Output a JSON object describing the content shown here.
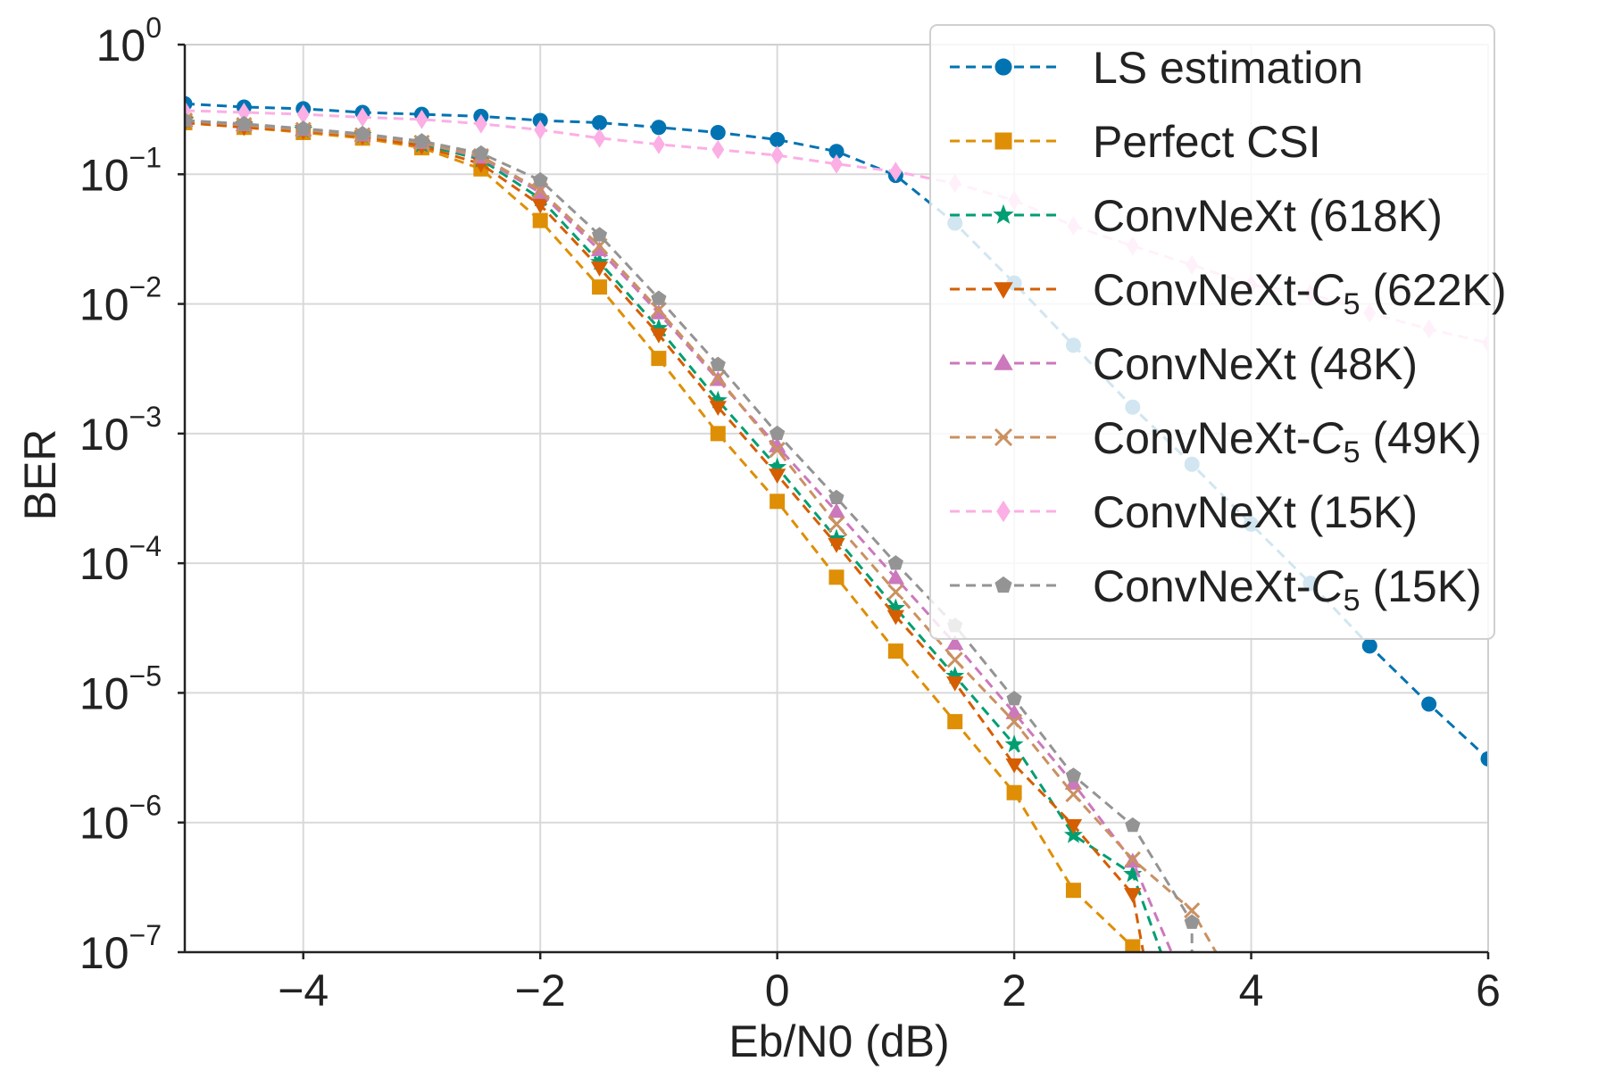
{
  "chart_data": {
    "type": "line",
    "xlabel": "Eb/N0 (dB)",
    "ylabel": "BER",
    "xlim": [
      -5,
      6
    ],
    "ylim": [
      1e-07,
      1
    ],
    "yscale": "log",
    "grid": true,
    "legend_position": "top-right",
    "x_ticks": [
      -4,
      -2,
      0,
      2,
      4,
      6
    ],
    "x_tick_labels": [
      "−4",
      "−2",
      "0",
      "2",
      "4",
      "6"
    ],
    "y_tick_labels": [
      {
        "base": "10",
        "exp": "0"
      },
      {
        "base": "10",
        "exp": "−1"
      },
      {
        "base": "10",
        "exp": "−2"
      },
      {
        "base": "10",
        "exp": "−3"
      },
      {
        "base": "10",
        "exp": "−4"
      },
      {
        "base": "10",
        "exp": "−5"
      },
      {
        "base": "10",
        "exp": "−6"
      },
      {
        "base": "10",
        "exp": "−7"
      }
    ],
    "series": [
      {
        "name": "LS estimation",
        "color": "#0173b2",
        "marker": "circle",
        "x": [
          -5,
          -4.5,
          -4,
          -3.5,
          -3,
          -2.5,
          -2,
          -1.5,
          -1,
          -0.5,
          0,
          0.5,
          1,
          1.5,
          2,
          2.5,
          3,
          3.5,
          4,
          4.5,
          5,
          5.5,
          6
        ],
        "y": [
          0.35,
          0.33,
          0.32,
          0.3,
          0.29,
          0.28,
          0.26,
          0.25,
          0.23,
          0.21,
          0.185,
          0.15,
          0.098,
          0.042,
          0.0145,
          0.0048,
          0.0016,
          0.00058,
          0.0002,
          7e-05,
          2.3e-05,
          8.2e-06,
          3.1e-06
        ]
      },
      {
        "name": "Perfect CSI",
        "color": "#de8f05",
        "marker": "square",
        "x": [
          -5,
          -4.5,
          -4,
          -3.5,
          -3,
          -2.5,
          -2,
          -1.5,
          -1,
          -0.5,
          0,
          0.5,
          1,
          1.5,
          2,
          2.5,
          3,
          3.2
        ],
        "y": [
          0.25,
          0.23,
          0.21,
          0.19,
          0.16,
          0.11,
          0.044,
          0.0135,
          0.0038,
          0.001,
          0.0003,
          7.8e-05,
          2.1e-05,
          6e-06,
          1.7e-06,
          3e-07,
          1.1e-07,
          7e-08
        ]
      },
      {
        "name": "ConvNeXt (618K)",
        "color": "#029e73",
        "marker": "star",
        "x": [
          -5,
          -4.5,
          -4,
          -3.5,
          -3,
          -2.5,
          -2,
          -1.5,
          -1,
          -0.5,
          0,
          0.5,
          1,
          1.5,
          2,
          2.5,
          3,
          3.3
        ],
        "y": [
          0.26,
          0.24,
          0.22,
          0.2,
          0.17,
          0.13,
          0.065,
          0.021,
          0.0065,
          0.0018,
          0.00055,
          0.000155,
          4.5e-05,
          1.35e-05,
          4e-06,
          8e-07,
          4e-07,
          7e-08
        ]
      },
      {
        "name": "ConvNeXt-C5 (622K)",
        "label_main": "ConvNeXt-",
        "label_italic": "C",
        "label_sub": "5",
        "label_tail": " (622K)",
        "color": "#d55e00",
        "marker": "triangle-down",
        "x": [
          -5,
          -4.5,
          -4,
          -3.5,
          -3,
          -2.5,
          -2,
          -1.5,
          -1,
          -0.5,
          0,
          0.5,
          1,
          1.5,
          2,
          2.5,
          3,
          3.12
        ],
        "y": [
          0.25,
          0.23,
          0.215,
          0.195,
          0.165,
          0.12,
          0.058,
          0.019,
          0.0058,
          0.0016,
          0.00048,
          0.00014,
          3.9e-05,
          1.2e-05,
          2.8e-06,
          9.5e-07,
          2.8e-07,
          7e-08
        ]
      },
      {
        "name": "ConvNeXt (48K)",
        "color": "#cc78bc",
        "marker": "triangle-up",
        "x": [
          -5,
          -4.5,
          -4,
          -3.5,
          -3,
          -2.5,
          -2,
          -1.5,
          -1,
          -0.5,
          0,
          0.5,
          1,
          1.5,
          2,
          2.5,
          3,
          3.4
        ],
        "y": [
          0.26,
          0.24,
          0.22,
          0.2,
          0.175,
          0.135,
          0.072,
          0.026,
          0.0085,
          0.0026,
          0.0008,
          0.00025,
          7.7e-05,
          2.4e-05,
          7e-06,
          2e-06,
          5e-07,
          7e-08
        ]
      },
      {
        "name": "ConvNeXt-C5 (49K)",
        "label_main": "ConvNeXt-",
        "label_italic": "C",
        "label_sub": "5",
        "label_tail": " (49K)",
        "color": "#ca9161",
        "marker": "x",
        "x": [
          -5,
          -4.5,
          -4,
          -3.5,
          -3,
          -2.5,
          -2,
          -1.5,
          -1,
          -0.5,
          0,
          0.5,
          1,
          1.5,
          2,
          2.5,
          3,
          3.5,
          3.8
        ],
        "y": [
          0.26,
          0.24,
          0.22,
          0.2,
          0.175,
          0.138,
          0.075,
          0.028,
          0.009,
          0.0027,
          0.00075,
          0.0002,
          6e-05,
          1.8e-05,
          6e-06,
          1.65e-06,
          5.2e-07,
          2.1e-07,
          7e-08
        ]
      },
      {
        "name": "ConvNeXt (15K)",
        "color": "#fbafe4",
        "marker": "diamond",
        "x": [
          -5,
          -4.5,
          -4,
          -3.5,
          -3,
          -2.5,
          -2,
          -1.5,
          -1,
          -0.5,
          0,
          0.5,
          1,
          1.5,
          2,
          2.5,
          3,
          3.5,
          4,
          4.5,
          5,
          5.5,
          6
        ],
        "y": [
          0.31,
          0.3,
          0.29,
          0.275,
          0.265,
          0.245,
          0.22,
          0.19,
          0.17,
          0.155,
          0.14,
          0.12,
          0.105,
          0.085,
          0.063,
          0.04,
          0.028,
          0.02,
          0.014,
          0.012,
          0.0085,
          0.0064,
          0.005
        ]
      },
      {
        "name": "ConvNeXt-C5 (15K)",
        "label_main": "ConvNeXt-",
        "label_italic": "C",
        "label_sub": "5",
        "label_tail": " (15K)",
        "color": "#949494",
        "marker": "pentagon",
        "x": [
          -5,
          -4.5,
          -4,
          -3.5,
          -3,
          -2.5,
          -2,
          -1.5,
          -1,
          -0.5,
          0,
          0.5,
          1,
          1.5,
          2,
          2.5,
          3,
          3.5,
          3.5
        ],
        "y": [
          0.26,
          0.245,
          0.225,
          0.205,
          0.18,
          0.145,
          0.09,
          0.034,
          0.011,
          0.0034,
          0.001,
          0.00032,
          0.0001,
          3.3e-05,
          9e-06,
          2.3e-06,
          9.5e-07,
          1.7e-07,
          7e-08
        ]
      }
    ]
  }
}
